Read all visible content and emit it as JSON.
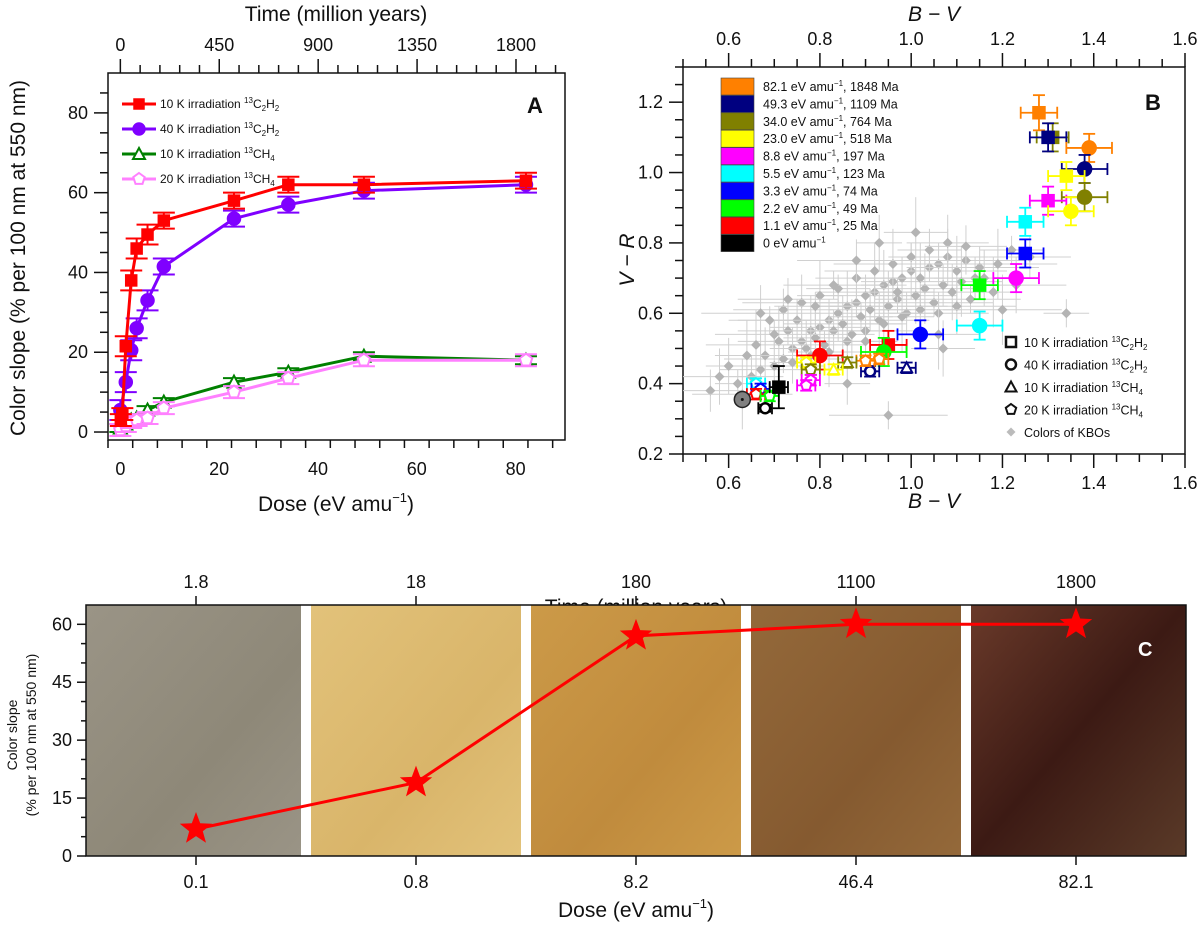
{
  "chart_data": [
    {
      "panel": "A",
      "type": "line",
      "panel_label": "A",
      "xlabel": "Dose (eV amu⁻¹)",
      "xlabel_main": "Dose (eV amu",
      "xlabel_sup": "−1",
      "xlabel_close": ")",
      "ylabel": "Color slope (% per 100 nm at 550 nm)",
      "top_xlabel": "Time (million years)",
      "xlim": [
        -2.5,
        90
      ],
      "ylim": [
        -2,
        90
      ],
      "xticks": [
        0,
        20,
        40,
        60,
        80
      ],
      "yticks": [
        0,
        20,
        40,
        60,
        80
      ],
      "top_xticks_dose": [
        0,
        20.02,
        40.04,
        60.06,
        80.08
      ],
      "top_xtick_labels": [
        "0",
        "450",
        "900",
        "1350",
        "1800"
      ],
      "legend_position": "top-left",
      "series": [
        {
          "name": "10 K irradiation 13C2H2",
          "label_pre": "10 K irradiation ",
          "label_sup": "13",
          "label_main": "C",
          "label_sub1": "2",
          "label_main2": "H",
          "label_sub2": "2",
          "color": "#ff0000",
          "marker": "square",
          "x": [
            0.1,
            0.4,
            1.1,
            2.2,
            3.3,
            5.5,
            8.8,
            23.0,
            34.0,
            49.3,
            82.1
          ],
          "y": [
            3,
            4.5,
            21.5,
            38,
            46,
            49.5,
            53,
            58,
            62,
            62,
            63
          ],
          "err": [
            1.5,
            1.5,
            2.5,
            2.5,
            2.5,
            2.5,
            2,
            2,
            2,
            2,
            2
          ]
        },
        {
          "name": "40 K irradiation 13C2H2",
          "label_pre": "40 K irradiation ",
          "label_sup": "13",
          "label_main": "C",
          "label_sub1": "2",
          "label_main2": "H",
          "label_sub2": "2",
          "color": "#7f00ff",
          "marker": "circle",
          "x": [
            0,
            1.1,
            2.2,
            3.3,
            5.5,
            8.8,
            23.0,
            34.0,
            49.3,
            82.1
          ],
          "y": [
            5.5,
            12.5,
            20.5,
            26,
            33,
            41.5,
            53.5,
            57,
            60.5,
            62
          ],
          "err": [
            2.5,
            2.5,
            2.5,
            2.5,
            2.5,
            2,
            2,
            2,
            2,
            2
          ]
        },
        {
          "name": "10 K irradiation 13CH4",
          "label_pre": "10 K irradiation ",
          "label_sup": "13",
          "label_main": "CH",
          "label_sub1": "4",
          "label_main2": "",
          "label_sub2": "",
          "color": "#008000",
          "marker": "triangle",
          "x": [
            0,
            1.1,
            2.2,
            3.3,
            5.5,
            8.8,
            23.0,
            34.0,
            49.3,
            82.1
          ],
          "y": [
            1,
            2,
            3,
            3.5,
            5.5,
            7.5,
            12.5,
            15,
            19,
            18
          ],
          "err": [
            1,
            1,
            1,
            1,
            1,
            1,
            1,
            1,
            1,
            1
          ]
        },
        {
          "name": "20 K irradiation 13CH4",
          "label_pre": "20 K irradiation ",
          "label_sup": "13",
          "label_main": "CH",
          "label_sub1": "4",
          "label_main2": "",
          "label_sub2": "",
          "color": "#ff80ff",
          "marker": "pentagon",
          "x": [
            0,
            1.1,
            2.2,
            3.3,
            5.5,
            8.8,
            23.0,
            34.0,
            49.3,
            82.1
          ],
          "y": [
            0.5,
            1.5,
            2.5,
            3,
            3.5,
            6,
            10,
            13.5,
            18,
            18
          ],
          "err": [
            1.5,
            1.5,
            1.5,
            1.5,
            1.5,
            1.5,
            1.5,
            1.5,
            1.5,
            1.5
          ]
        }
      ]
    },
    {
      "panel": "B",
      "type": "scatter",
      "panel_label": "B",
      "xlabel": "B − V",
      "ylabel": "V − R",
      "xlim": [
        0.5,
        1.6
      ],
      "ylim": [
        0.2,
        1.3
      ],
      "xticks": [
        0.6,
        0.8,
        1.0,
        1.2,
        1.4,
        1.6
      ],
      "xtick_labels": [
        "0.6",
        "0.8",
        "1.0",
        "1.2",
        "1.4",
        "1.6"
      ],
      "yticks": [
        0.2,
        0.4,
        0.6,
        0.8,
        1.0,
        1.2
      ],
      "ytick_labels": [
        "0.2",
        "0.4",
        "0.6",
        "0.8",
        "1.0",
        "1.2"
      ],
      "color_legend_position": "top-left",
      "marker_legend_position": "bottom-right",
      "dose_legend": [
        {
          "label": "82.1 eV amu",
          "suffix": ", 1848 Ma",
          "color": "#ff8000"
        },
        {
          "label": "49.3 eV amu",
          "suffix": ", 1109 Ma",
          "color": "#000080"
        },
        {
          "label": "34.0 eV amu",
          "suffix": ", 764 Ma",
          "color": "#808000"
        },
        {
          "label": "23.0 eV amu",
          "suffix": ", 518 Ma",
          "color": "#ffff00"
        },
        {
          "label": "8.8 eV amu",
          "suffix": ", 197 Ma",
          "color": "#ff00ff"
        },
        {
          "label": "5.5 eV amu",
          "suffix": ", 123 Ma",
          "color": "#00ffff"
        },
        {
          "label": "3.3 eV amu",
          "suffix": ", 74 Ma",
          "color": "#0000ff"
        },
        {
          "label": "2.2 eV amu",
          "suffix": ", 49 Ma",
          "color": "#00ff00"
        },
        {
          "label": "1.1 eV amu",
          "suffix": ", 25 Ma",
          "color": "#ff0000"
        },
        {
          "label": "0 eV amu",
          "suffix": "",
          "color": "#000000"
        }
      ],
      "marker_legend": [
        {
          "marker": "square",
          "pre": "10 K  irradiation ",
          "sup": "13",
          "main": "C",
          "sub1": "2",
          "main2": "H",
          "sub2": "2"
        },
        {
          "marker": "circle",
          "pre": "40 K  irradiation ",
          "sup": "13",
          "main": "C",
          "sub1": "2",
          "main2": "H",
          "sub2": "2"
        },
        {
          "marker": "triangle",
          "pre": "10 K  irradiation ",
          "sup": "13",
          "main": "CH",
          "sub1": "4",
          "main2": "",
          "sub2": ""
        },
        {
          "marker": "pentagon",
          "pre": "20 K  irradiation ",
          "sup": "13",
          "main": "CH",
          "sub1": "4",
          "main2": "",
          "sub2": ""
        },
        {
          "marker": "diamond",
          "pre": "Colors of KBOs",
          "sup": "",
          "main": "",
          "sub1": "",
          "main2": "",
          "sub2": ""
        }
      ],
      "lab_points": [
        {
          "marker": "square",
          "color": "#ff8000",
          "x": 1.28,
          "y": 1.17,
          "ex": 0.04,
          "ey": 0.05
        },
        {
          "marker": "square",
          "color": "#808000",
          "x": 1.31,
          "y": 1.1,
          "ex": 0.035,
          "ey": 0.04
        },
        {
          "marker": "square",
          "color": "#000080",
          "x": 1.3,
          "y": 1.1,
          "ex": 0.04,
          "ey": 0.04
        },
        {
          "marker": "circle",
          "color": "#ff8000",
          "x": 1.39,
          "y": 1.07,
          "ex": 0.05,
          "ey": 0.04
        },
        {
          "marker": "circle",
          "color": "#000080",
          "x": 1.38,
          "y": 1.01,
          "ex": 0.05,
          "ey": 0.04
        },
        {
          "marker": "square",
          "color": "#ffff00",
          "x": 1.34,
          "y": 0.99,
          "ex": 0.04,
          "ey": 0.04
        },
        {
          "marker": "circle",
          "color": "#808000",
          "x": 1.38,
          "y": 0.93,
          "ex": 0.05,
          "ey": 0.04
        },
        {
          "marker": "square",
          "color": "#ff00ff",
          "x": 1.3,
          "y": 0.92,
          "ex": 0.04,
          "ey": 0.04
        },
        {
          "marker": "circle",
          "color": "#ffff00",
          "x": 1.35,
          "y": 0.89,
          "ex": 0.05,
          "ey": 0.04
        },
        {
          "marker": "square",
          "color": "#00ffff",
          "x": 1.25,
          "y": 0.86,
          "ex": 0.04,
          "ey": 0.04
        },
        {
          "marker": "square",
          "color": "#0000ff",
          "x": 1.25,
          "y": 0.77,
          "ex": 0.04,
          "ey": 0.04
        },
        {
          "marker": "circle",
          "color": "#ff00ff",
          "x": 1.23,
          "y": 0.7,
          "ex": 0.05,
          "ey": 0.04
        },
        {
          "marker": "square",
          "color": "#00ff00",
          "x": 1.15,
          "y": 0.68,
          "ex": 0.04,
          "ey": 0.04
        },
        {
          "marker": "circle",
          "color": "#00ffff",
          "x": 1.15,
          "y": 0.565,
          "ex": 0.05,
          "ey": 0.04
        },
        {
          "marker": "circle",
          "color": "#0000ff",
          "x": 1.02,
          "y": 0.54,
          "ex": 0.05,
          "ey": 0.04
        },
        {
          "marker": "square",
          "color": "#ff0000",
          "x": 0.95,
          "y": 0.51,
          "ex": 0.04,
          "ey": 0.04
        },
        {
          "marker": "circle",
          "color": "#00ff00",
          "x": 0.94,
          "y": 0.49,
          "ex": 0.05,
          "ey": 0.04
        },
        {
          "marker": "circle",
          "color": "#ff0000",
          "x": 0.8,
          "y": 0.48,
          "ex": 0.05,
          "ey": 0.04
        },
        {
          "marker": "triangle",
          "color": "#000080",
          "x": 0.99,
          "y": 0.445,
          "ex": 0.02,
          "ey": 0.015
        },
        {
          "marker": "circle-open",
          "color": "#000080",
          "x": 0.91,
          "y": 0.435,
          "ex": 0.02,
          "ey": 0.015
        },
        {
          "marker": "pentagon",
          "color": "#ff8000",
          "x": 0.93,
          "y": 0.47,
          "ex": 0.02,
          "ey": 0.015
        },
        {
          "marker": "pentagon",
          "color": "#ff8000",
          "x": 0.9,
          "y": 0.465,
          "ex": 0.02,
          "ey": 0.015
        },
        {
          "marker": "triangle",
          "color": "#808000",
          "x": 0.86,
          "y": 0.46,
          "ex": 0.02,
          "ey": 0.015
        },
        {
          "marker": "triangle",
          "color": "#ffff00",
          "x": 0.83,
          "y": 0.44,
          "ex": 0.02,
          "ey": 0.015
        },
        {
          "marker": "pentagon",
          "color": "#ffff00",
          "x": 0.77,
          "y": 0.46,
          "ex": 0.02,
          "ey": 0.015
        },
        {
          "marker": "pentagon",
          "color": "#808000",
          "x": 0.78,
          "y": 0.44,
          "ex": 0.02,
          "ey": 0.015
        },
        {
          "marker": "pentagon",
          "color": "#ff00ff",
          "x": 0.78,
          "y": 0.41,
          "ex": 0.02,
          "ey": 0.015
        },
        {
          "marker": "pentagon",
          "color": "#ff00ff",
          "x": 0.77,
          "y": 0.395,
          "ex": 0.02,
          "ey": 0.015
        },
        {
          "marker": "pentagon",
          "color": "#00ffff",
          "x": 0.66,
          "y": 0.4,
          "ex": 0.02,
          "ey": 0.015
        },
        {
          "marker": "pentagon",
          "color": "#0000ff",
          "x": 0.67,
          "y": 0.385,
          "ex": 0.02,
          "ey": 0.015
        },
        {
          "marker": "pentagon",
          "color": "#ff0000",
          "x": 0.66,
          "y": 0.37,
          "ex": 0.02,
          "ey": 0.015
        },
        {
          "marker": "pentagon",
          "color": "#00ff00",
          "x": 0.69,
          "y": 0.365,
          "ex": 0.02,
          "ey": 0.015
        },
        {
          "marker": "square",
          "color": "#000000",
          "x": 0.71,
          "y": 0.39,
          "ex": 0.02,
          "ey": 0.06
        },
        {
          "marker": "circle-open",
          "color": "#000000",
          "x": 0.68,
          "y": 0.33,
          "ex": 0.015,
          "ey": 0.01
        },
        {
          "marker": "circle-gray",
          "color": "#000000",
          "x": 0.63,
          "y": 0.355,
          "ex": 0.0,
          "ey": 0.0
        }
      ],
      "kbo_points": [
        [
          0.62,
          0.4
        ],
        [
          0.65,
          0.42
        ],
        [
          0.67,
          0.44
        ],
        [
          0.7,
          0.45
        ],
        [
          0.72,
          0.47
        ],
        [
          0.74,
          0.5
        ],
        [
          0.76,
          0.52
        ],
        [
          0.78,
          0.55
        ],
        [
          0.8,
          0.56
        ],
        [
          0.82,
          0.58
        ],
        [
          0.84,
          0.6
        ],
        [
          0.86,
          0.62
        ],
        [
          0.88,
          0.63
        ],
        [
          0.9,
          0.65
        ],
        [
          0.92,
          0.66
        ],
        [
          0.94,
          0.68
        ],
        [
          0.96,
          0.69
        ],
        [
          0.98,
          0.7
        ],
        [
          1.0,
          0.72
        ],
        [
          1.02,
          0.7
        ],
        [
          1.04,
          0.73
        ],
        [
          1.06,
          0.74
        ],
        [
          1.08,
          0.76
        ],
        [
          1.1,
          0.72
        ],
        [
          1.12,
          0.75
        ],
        [
          1.14,
          0.7
        ],
        [
          0.68,
          0.48
        ],
        [
          0.71,
          0.52
        ],
        [
          0.73,
          0.55
        ],
        [
          0.75,
          0.58
        ],
        [
          0.77,
          0.5
        ],
        [
          0.79,
          0.53
        ],
        [
          0.81,
          0.51
        ],
        [
          0.83,
          0.55
        ],
        [
          0.85,
          0.57
        ],
        [
          0.87,
          0.54
        ],
        [
          0.89,
          0.59
        ],
        [
          0.91,
          0.61
        ],
        [
          0.93,
          0.58
        ],
        [
          0.95,
          0.62
        ],
        [
          0.97,
          0.64
        ],
        [
          0.99,
          0.6
        ],
        [
          1.01,
          0.65
        ],
        [
          1.03,
          0.67
        ],
        [
          1.05,
          0.63
        ],
        [
          1.07,
          0.68
        ],
        [
          1.09,
          0.66
        ],
        [
          1.11,
          0.69
        ],
        [
          1.13,
          0.64
        ],
        [
          1.15,
          0.73
        ],
        [
          0.6,
          0.45
        ],
        [
          0.64,
          0.48
        ],
        [
          0.69,
          0.58
        ],
        [
          0.72,
          0.61
        ],
        [
          0.76,
          0.63
        ],
        [
          0.8,
          0.65
        ],
        [
          0.84,
          0.67
        ],
        [
          0.88,
          0.7
        ],
        [
          0.92,
          0.72
        ],
        [
          0.96,
          0.74
        ],
        [
          1.0,
          0.76
        ],
        [
          1.04,
          0.78
        ],
        [
          1.08,
          0.8
        ],
        [
          0.66,
          0.51
        ],
        [
          0.7,
          0.54
        ],
        [
          0.74,
          0.46
        ],
        [
          0.78,
          0.48
        ],
        [
          0.82,
          0.49
        ],
        [
          0.86,
          0.52
        ],
        [
          0.9,
          0.55
        ],
        [
          0.94,
          0.57
        ],
        [
          0.98,
          0.59
        ],
        [
          1.02,
          0.61
        ],
        [
          1.06,
          0.6
        ],
        [
          1.1,
          0.62
        ],
        [
          1.18,
          0.66
        ],
        [
          1.22,
          0.78
        ],
        [
          1.26,
          0.76
        ],
        [
          1.23,
          0.68
        ],
        [
          1.2,
          0.61
        ],
        [
          1.34,
          0.6
        ],
        [
          0.56,
          0.38
        ],
        [
          0.58,
          0.42
        ],
        [
          0.63,
          0.37
        ],
        [
          0.95,
          0.31
        ],
        [
          0.86,
          0.4
        ],
        [
          1.07,
          0.5
        ],
        [
          1.06,
          0.54
        ],
        [
          0.83,
          0.68
        ],
        [
          0.88,
          0.75
        ],
        [
          0.93,
          0.8
        ],
        [
          1.01,
          0.83
        ],
        [
          0.79,
          0.62
        ],
        [
          0.73,
          0.64
        ],
        [
          0.67,
          0.6
        ],
        [
          0.9,
          0.52
        ],
        [
          0.97,
          0.66
        ],
        [
          1.12,
          0.79
        ],
        [
          1.16,
          0.7
        ],
        [
          1.19,
          0.74
        ]
      ]
    },
    {
      "panel": "C",
      "type": "line",
      "panel_label": "C",
      "xlabel_main": "Dose (eV amu",
      "xlabel_sup": "−1",
      "xlabel_close": ")",
      "ylabel_line1": "Color slope",
      "ylabel_line2": "(% per 100 nm at 550 nm)",
      "top_xlabel": "Time (million years)",
      "categories": [
        "0.1",
        "0.8",
        "8.2",
        "46.4",
        "82.1"
      ],
      "top_categories": [
        "1.8",
        "18",
        "180",
        "1100",
        "1800"
      ],
      "values": [
        7,
        19,
        57,
        60,
        60
      ],
      "ylim": [
        0,
        65
      ],
      "yticks": [
        0,
        15,
        30,
        45,
        60
      ],
      "marker": "star",
      "line_color": "#ff0000",
      "sample_colors": [
        "#9a9486",
        "#e2c27a",
        "#cc9a48",
        "#94693a",
        "#4a2520"
      ],
      "sample_colors_dark": [
        "#8e8878",
        "#d9b56a",
        "#c08b3d",
        "#855a30",
        "#2f1410"
      ]
    }
  ]
}
